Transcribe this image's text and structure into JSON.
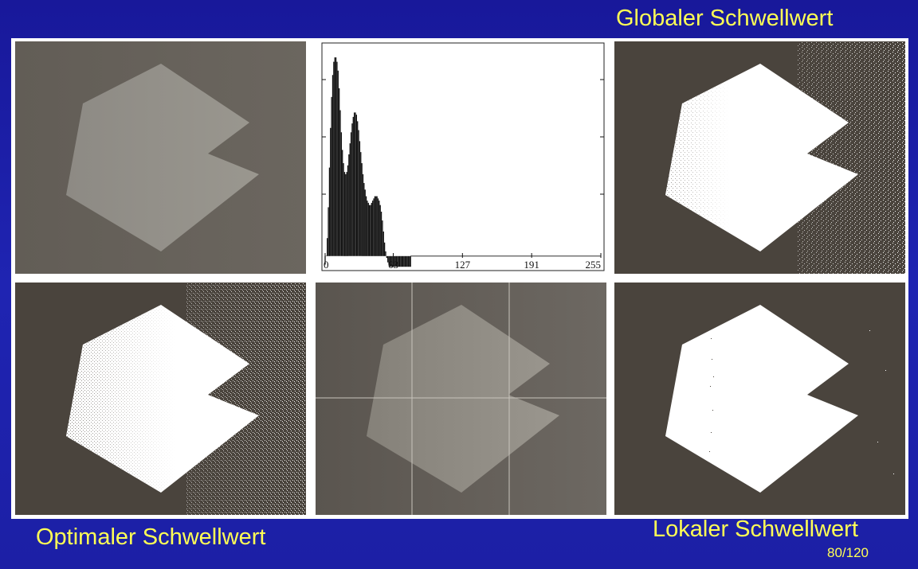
{
  "slide": {
    "title_global": "Globaler Schwellwert",
    "title_optimal": "Optimaler Schwellwert",
    "title_local": "Lokaler Schwellwert",
    "page_number": "80/120"
  },
  "colors": {
    "background": "#1c1fa5",
    "title_text": "#ffff55",
    "panel_frame": "#ffffff",
    "image_dark": "#4a433c",
    "image_gray": "#65605a",
    "shape_gray": "#8c8983",
    "shape_white": "#ffffff"
  },
  "panels": [
    {
      "id": "original",
      "caption": ""
    },
    {
      "id": "histogram",
      "caption": ""
    },
    {
      "id": "global-threshold-result",
      "caption": ""
    },
    {
      "id": "optimal-threshold-result",
      "caption": ""
    },
    {
      "id": "subdivided-image",
      "caption": ""
    },
    {
      "id": "local-threshold-result",
      "caption": ""
    }
  ],
  "chart_data": {
    "type": "bar",
    "title": "",
    "xlabel": "",
    "ylabel": "",
    "xlim": [
      0,
      255
    ],
    "ylim": [
      0,
      1
    ],
    "tick_labels": [
      "0",
      "63",
      "127",
      "191",
      "255"
    ],
    "tick_values": [
      0,
      63,
      127,
      191,
      255
    ],
    "grid": false,
    "series": [
      {
        "peaks": [
          {
            "center": 12,
            "amplitude": 0.96,
            "width": 4
          },
          {
            "center": 33,
            "amplitude": 0.71,
            "width": 7
          },
          {
            "center": 60,
            "amplitude": 0.33,
            "width": 10
          }
        ],
        "values": [
          0.02,
          0.06,
          0.14,
          0.28,
          0.46,
          0.64,
          0.78,
          0.88,
          0.94,
          0.96,
          0.96,
          0.94,
          0.9,
          0.82,
          0.72,
          0.62,
          0.54,
          0.48,
          0.44,
          0.43,
          0.44,
          0.47,
          0.52,
          0.57,
          0.62,
          0.66,
          0.69,
          0.71,
          0.71,
          0.7,
          0.67,
          0.63,
          0.58,
          0.53,
          0.48,
          0.43,
          0.39,
          0.36,
          0.33,
          0.31,
          0.3,
          0.29,
          0.29,
          0.3,
          0.31,
          0.32,
          0.33,
          0.33,
          0.33,
          0.32,
          0.31,
          0.29,
          0.26,
          0.22,
          0.17,
          0.12,
          0.08,
          0.05,
          0.03,
          0.02,
          0.01,
          0.01,
          0.01,
          0.01,
          0.01,
          0.01,
          0.01,
          0.01,
          0.01,
          0.01,
          0.01,
          0.01,
          0.01,
          0.01,
          0.01,
          0.01,
          0.01,
          0.01,
          0.01,
          0.01
        ]
      }
    ]
  }
}
